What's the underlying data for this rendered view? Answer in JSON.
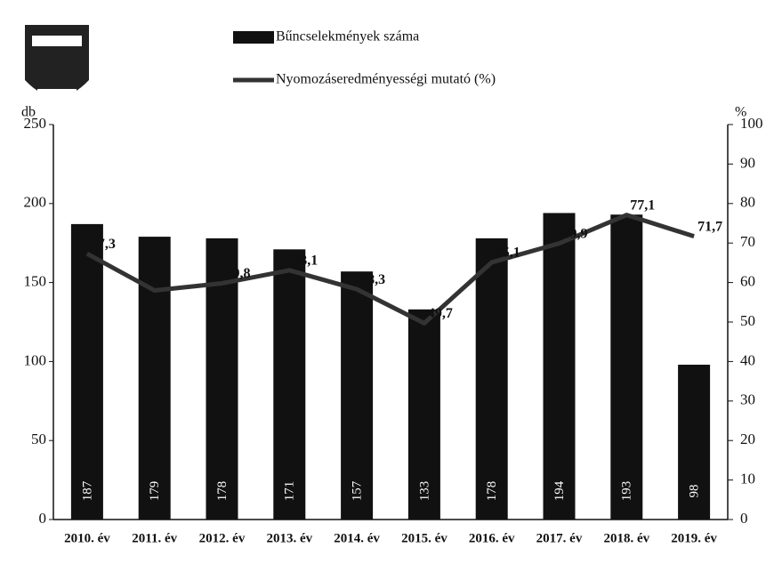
{
  "chart_data": {
    "type": "bar",
    "categories": [
      "2010. év",
      "2011. év",
      "2012. év",
      "2013. év",
      "2014. év",
      "2015. év",
      "2016. év",
      "2017. év",
      "2018. év",
      "2019. év"
    ],
    "series": [
      {
        "name": "Bűncselekmények száma",
        "type": "bar",
        "color": "#111111",
        "axis": "y",
        "values": [
          187,
          179,
          178,
          171,
          157,
          133,
          178,
          194,
          193,
          98
        ]
      },
      {
        "name": "Nyomozáseredményességi mutató (%)",
        "type": "line",
        "color": "#333333",
        "axis": "y2",
        "values": [
          67.3,
          58,
          59.8,
          63.1,
          58.3,
          49.7,
          65.1,
          69.9,
          77.1,
          71.7
        ],
        "value_labels": [
          "67,3",
          null,
          "59,8",
          "63,1",
          "58,3",
          "49,7",
          "65,1",
          "69,9",
          "77,1",
          "71,7"
        ]
      }
    ],
    "ylabel": "db",
    "y2label": "%",
    "ylim": [
      0,
      250
    ],
    "yticks": [
      0,
      50,
      100,
      150,
      200,
      250
    ],
    "y2lim": [
      0,
      100
    ],
    "y2ticks": [
      0,
      10,
      20,
      30,
      40,
      50,
      60,
      70,
      80,
      90,
      100
    ]
  }
}
